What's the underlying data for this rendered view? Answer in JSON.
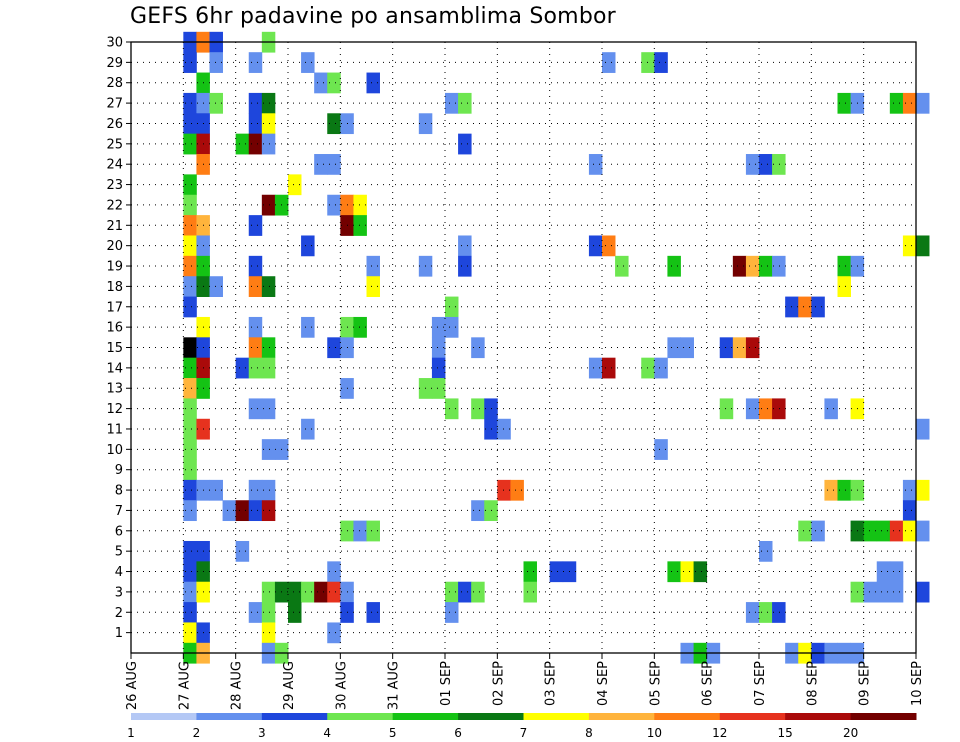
{
  "chart_data": {
    "type": "heatmap",
    "title": "GEFS 6hr padavine po ansamblima Sombor",
    "xlabel": "",
    "ylabel": "",
    "grid": true,
    "legend_placement": "bottom",
    "x_range_days": [
      "26 AUG 00",
      "10 SEP 00"
    ],
    "x_ticks": [
      "26 AUG",
      "27 AUG",
      "28 AUG",
      "29 AUG",
      "30 AUG",
      "31 AUG",
      "01 SEP",
      "02 SEP",
      "03 SEP",
      "04 SEP",
      "05 SEP",
      "06 SEP",
      "07 SEP",
      "08 SEP",
      "09 SEP",
      "10 SEP"
    ],
    "y_ticks": [
      1,
      2,
      3,
      4,
      5,
      6,
      7,
      8,
      9,
      10,
      11,
      12,
      13,
      14,
      15,
      16,
      17,
      18,
      19,
      20,
      21,
      22,
      23,
      24,
      25,
      26,
      27,
      28,
      29,
      30
    ],
    "y_range": [
      0,
      30
    ],
    "cell_hours": 6,
    "colorbar": {
      "labels": [
        "1",
        "2",
        "3",
        "4",
        "5",
        "6",
        "7",
        "8",
        "10",
        "12",
        "15",
        "20"
      ],
      "colors": [
        "#b4c8f5",
        "#6490ee",
        "#1e46dc",
        "#6ee650",
        "#14c314",
        "#0a7814",
        "#ffff00",
        "#ffb43c",
        "#ff7d14",
        "#e6321e",
        "#aa0a0a",
        "#730000"
      ]
    },
    "cells": [
      [
        "27 AUG 00",
        30,
        2
      ],
      [
        "27 AUG 06",
        30,
        8
      ],
      [
        "27 AUG 12",
        30,
        2
      ],
      [
        "28 AUG 12",
        30,
        3
      ],
      [
        "27 AUG 00",
        29,
        2
      ],
      [
        "27 AUG 12",
        29,
        1
      ],
      [
        "28 AUG 06",
        29,
        1
      ],
      [
        "29 AUG 06",
        29,
        1
      ],
      [
        "04 SEP 00",
        29,
        1
      ],
      [
        "04 SEP 18",
        29,
        3
      ],
      [
        "05 SEP 00",
        29,
        2
      ],
      [
        "27 AUG 06",
        28,
        4
      ],
      [
        "29 AUG 12",
        28,
        1
      ],
      [
        "29 AUG 18",
        28,
        3
      ],
      [
        "30 AUG 12",
        28,
        2
      ],
      [
        "27 AUG 00",
        27,
        2
      ],
      [
        "27 AUG 06",
        27,
        1
      ],
      [
        "27 AUG 12",
        27,
        3
      ],
      [
        "28 AUG 06",
        27,
        2
      ],
      [
        "28 AUG 12",
        27,
        5
      ],
      [
        "01 SEP 00",
        27,
        1
      ],
      [
        "01 SEP 06",
        27,
        3
      ],
      [
        "08 SEP 12",
        27,
        4
      ],
      [
        "08 SEP 18",
        27,
        1
      ],
      [
        "09 SEP 12",
        27,
        4
      ],
      [
        "09 SEP 18",
        27,
        8
      ],
      [
        "10 SEP 00",
        27,
        1
      ],
      [
        "27 AUG 00",
        26,
        2
      ],
      [
        "27 AUG 06",
        26,
        2
      ],
      [
        "28 AUG 06",
        26,
        2
      ],
      [
        "28 AUG 12",
        26,
        6
      ],
      [
        "29 AUG 18",
        26,
        5
      ],
      [
        "30 AUG 00",
        26,
        1
      ],
      [
        "31 AUG 12",
        26,
        1
      ],
      [
        "27 AUG 00",
        25,
        4
      ],
      [
        "27 AUG 06",
        25,
        10
      ],
      [
        "28 AUG 00",
        25,
        4
      ],
      [
        "28 AUG 06",
        25,
        11
      ],
      [
        "28 AUG 12",
        25,
        1
      ],
      [
        "01 SEP 06",
        25,
        2
      ],
      [
        "27 AUG 06",
        24,
        8
      ],
      [
        "29 AUG 12",
        24,
        1
      ],
      [
        "29 AUG 18",
        24,
        1
      ],
      [
        "03 SEP 18",
        24,
        1
      ],
      [
        "06 SEP 18",
        24,
        1
      ],
      [
        "07 SEP 00",
        24,
        2
      ],
      [
        "07 SEP 06",
        24,
        3
      ],
      [
        "27 AUG 00",
        23,
        4
      ],
      [
        "29 AUG 00",
        23,
        6
      ],
      [
        "27 AUG 00",
        22,
        3
      ],
      [
        "28 AUG 12",
        22,
        11
      ],
      [
        "28 AUG 18",
        22,
        4
      ],
      [
        "29 AUG 18",
        22,
        1
      ],
      [
        "30 AUG 00",
        22,
        8
      ],
      [
        "30 AUG 06",
        22,
        6
      ],
      [
        "27 AUG 00",
        21,
        8
      ],
      [
        "27 AUG 06",
        21,
        7
      ],
      [
        "28 AUG 06",
        21,
        2
      ],
      [
        "30 AUG 00",
        21,
        11
      ],
      [
        "30 AUG 06",
        21,
        4
      ],
      [
        "27 AUG 00",
        20,
        6
      ],
      [
        "27 AUG 06",
        20,
        1
      ],
      [
        "29 AUG 06",
        20,
        2
      ],
      [
        "01 SEP 06",
        20,
        1
      ],
      [
        "03 SEP 18",
        20,
        2
      ],
      [
        "04 SEP 00",
        20,
        8
      ],
      [
        "09 SEP 18",
        20,
        6
      ],
      [
        "10 SEP 00",
        20,
        5
      ],
      [
        "27 AUG 00",
        19,
        8
      ],
      [
        "27 AUG 06",
        19,
        4
      ],
      [
        "28 AUG 06",
        19,
        2
      ],
      [
        "30 AUG 12",
        19,
        1
      ],
      [
        "31 AUG 12",
        19,
        1
      ],
      [
        "01 SEP 06",
        19,
        2
      ],
      [
        "04 SEP 06",
        19,
        3
      ],
      [
        "05 SEP 06",
        19,
        4
      ],
      [
        "06 SEP 12",
        19,
        11
      ],
      [
        "06 SEP 18",
        19,
        7
      ],
      [
        "07 SEP 00",
        19,
        4
      ],
      [
        "07 SEP 06",
        19,
        1
      ],
      [
        "08 SEP 12",
        19,
        4
      ],
      [
        "08 SEP 18",
        19,
        1
      ],
      [
        "27 AUG 00",
        18,
        1
      ],
      [
        "27 AUG 06",
        18,
        5
      ],
      [
        "27 AUG 12",
        18,
        1
      ],
      [
        "28 AUG 06",
        18,
        8
      ],
      [
        "28 AUG 12",
        18,
        5
      ],
      [
        "30 AUG 12",
        18,
        6
      ],
      [
        "08 SEP 12",
        18,
        6
      ],
      [
        "27 AUG 00",
        17,
        2
      ],
      [
        "01 SEP 00",
        17,
        3
      ],
      [
        "07 SEP 12",
        17,
        2
      ],
      [
        "07 SEP 18",
        17,
        8
      ],
      [
        "08 SEP 00",
        17,
        2
      ],
      [
        "27 AUG 06",
        16,
        6
      ],
      [
        "28 AUG 06",
        16,
        1
      ],
      [
        "29 AUG 06",
        16,
        1
      ],
      [
        "30 AUG 00",
        16,
        3
      ],
      [
        "30 AUG 06",
        16,
        4
      ],
      [
        "31 AUG 18",
        16,
        1
      ],
      [
        "01 SEP 00",
        16,
        1
      ],
      [
        "27 AUG 00",
        15,
        12
      ],
      [
        "27 AUG 06",
        15,
        2
      ],
      [
        "28 AUG 06",
        15,
        8
      ],
      [
        "28 AUG 12",
        15,
        4
      ],
      [
        "29 AUG 18",
        15,
        2
      ],
      [
        "30 AUG 00",
        15,
        1
      ],
      [
        "31 AUG 18",
        15,
        1
      ],
      [
        "01 SEP 12",
        15,
        1
      ],
      [
        "05 SEP 06",
        15,
        1
      ],
      [
        "05 SEP 12",
        15,
        1
      ],
      [
        "06 SEP 06",
        15,
        2
      ],
      [
        "06 SEP 12",
        15,
        7
      ],
      [
        "06 SEP 18",
        15,
        10
      ],
      [
        "27 AUG 00",
        14,
        4
      ],
      [
        "27 AUG 06",
        14,
        10
      ],
      [
        "28 AUG 00",
        14,
        2
      ],
      [
        "28 AUG 06",
        14,
        3
      ],
      [
        "28 AUG 12",
        14,
        3
      ],
      [
        "31 AUG 18",
        14,
        2
      ],
      [
        "03 SEP 18",
        14,
        1
      ],
      [
        "04 SEP 00",
        14,
        10
      ],
      [
        "04 SEP 18",
        14,
        3
      ],
      [
        "05 SEP 00",
        14,
        1
      ],
      [
        "27 AUG 00",
        13,
        7
      ],
      [
        "27 AUG 06",
        13,
        4
      ],
      [
        "30 AUG 00",
        13,
        1
      ],
      [
        "31 AUG 12",
        13,
        3
      ],
      [
        "31 AUG 18",
        13,
        3
      ],
      [
        "27 AUG 00",
        12,
        3
      ],
      [
        "28 AUG 06",
        12,
        1
      ],
      [
        "28 AUG 12",
        12,
        1
      ],
      [
        "01 SEP 00",
        12,
        3
      ],
      [
        "01 SEP 12",
        12,
        3
      ],
      [
        "01 SEP 18",
        12,
        2
      ],
      [
        "06 SEP 06",
        12,
        3
      ],
      [
        "06 SEP 18",
        12,
        1
      ],
      [
        "07 SEP 00",
        12,
        8
      ],
      [
        "07 SEP 06",
        12,
        10
      ],
      [
        "08 SEP 06",
        12,
        1
      ],
      [
        "08 SEP 18",
        12,
        6
      ],
      [
        "27 AUG 00",
        11,
        3
      ],
      [
        "27 AUG 06",
        11,
        9
      ],
      [
        "29 AUG 06",
        11,
        1
      ],
      [
        "01 SEP 18",
        11,
        2
      ],
      [
        "02 SEP 00",
        11,
        1
      ],
      [
        "10 SEP 00",
        11,
        1
      ],
      [
        "27 AUG 00",
        10,
        3
      ],
      [
        "28 AUG 12",
        10,
        1
      ],
      [
        "28 AUG 18",
        10,
        1
      ],
      [
        "05 SEP 00",
        10,
        1
      ],
      [
        "27 AUG 00",
        9,
        3
      ],
      [
        "27 AUG 00",
        8,
        2
      ],
      [
        "27 AUG 06",
        8,
        1
      ],
      [
        "27 AUG 12",
        8,
        1
      ],
      [
        "28 AUG 06",
        8,
        1
      ],
      [
        "28 AUG 12",
        8,
        1
      ],
      [
        "02 SEP 00",
        8,
        9
      ],
      [
        "02 SEP 06",
        8,
        8
      ],
      [
        "08 SEP 06",
        8,
        7
      ],
      [
        "08 SEP 12",
        8,
        4
      ],
      [
        "08 SEP 18",
        8,
        3
      ],
      [
        "09 SEP 18",
        8,
        1
      ],
      [
        "10 SEP 00",
        8,
        6
      ],
      [
        "27 AUG 00",
        7,
        1
      ],
      [
        "27 AUG 18",
        7,
        1
      ],
      [
        "28 AUG 00",
        7,
        11
      ],
      [
        "28 AUG 06",
        7,
        2
      ],
      [
        "28 AUG 12",
        7,
        10
      ],
      [
        "01 SEP 12",
        7,
        1
      ],
      [
        "01 SEP 18",
        7,
        3
      ],
      [
        "09 SEP 18",
        7,
        2
      ],
      [
        "30 AUG 00",
        6,
        3
      ],
      [
        "30 AUG 06",
        6,
        1
      ],
      [
        "30 AUG 12",
        6,
        3
      ],
      [
        "07 SEP 18",
        6,
        3
      ],
      [
        "08 SEP 00",
        6,
        1
      ],
      [
        "08 SEP 18",
        6,
        5
      ],
      [
        "09 SEP 00",
        6,
        4
      ],
      [
        "09 SEP 06",
        6,
        4
      ],
      [
        "09 SEP 12",
        6,
        9
      ],
      [
        "09 SEP 18",
        6,
        6
      ],
      [
        "10 SEP 00",
        6,
        1
      ],
      [
        "27 AUG 00",
        5,
        2
      ],
      [
        "27 AUG 06",
        5,
        2
      ],
      [
        "28 AUG 00",
        5,
        1
      ],
      [
        "07 SEP 00",
        5,
        1
      ],
      [
        "27 AUG 00",
        4,
        2
      ],
      [
        "27 AUG 06",
        4,
        5
      ],
      [
        "29 AUG 18",
        4,
        1
      ],
      [
        "02 SEP 12",
        4,
        4
      ],
      [
        "03 SEP 00",
        4,
        2
      ],
      [
        "03 SEP 06",
        4,
        2
      ],
      [
        "05 SEP 06",
        4,
        4
      ],
      [
        "05 SEP 12",
        4,
        6
      ],
      [
        "05 SEP 18",
        4,
        5
      ],
      [
        "09 SEP 06",
        4,
        1
      ],
      [
        "09 SEP 12",
        4,
        1
      ],
      [
        "27 AUG 00",
        3,
        1
      ],
      [
        "27 AUG 06",
        3,
        6
      ],
      [
        "28 AUG 12",
        3,
        3
      ],
      [
        "28 AUG 18",
        3,
        5
      ],
      [
        "29 AUG 00",
        3,
        5
      ],
      [
        "29 AUG 06",
        3,
        3
      ],
      [
        "29 AUG 12",
        3,
        11
      ],
      [
        "29 AUG 18",
        3,
        9
      ],
      [
        "30 AUG 00",
        3,
        1
      ],
      [
        "01 SEP 00",
        3,
        3
      ],
      [
        "01 SEP 06",
        3,
        2
      ],
      [
        "01 SEP 12",
        3,
        3
      ],
      [
        "02 SEP 12",
        3,
        3
      ],
      [
        "08 SEP 18",
        3,
        3
      ],
      [
        "09 SEP 00",
        3,
        1
      ],
      [
        "09 SEP 06",
        3,
        1
      ],
      [
        "09 SEP 12",
        3,
        1
      ],
      [
        "10 SEP 00",
        3,
        2
      ],
      [
        "27 AUG 00",
        2,
        2
      ],
      [
        "28 AUG 06",
        2,
        1
      ],
      [
        "28 AUG 12",
        2,
        3
      ],
      [
        "29 AUG 00",
        2,
        5
      ],
      [
        "30 AUG 00",
        2,
        2
      ],
      [
        "30 AUG 12",
        2,
        2
      ],
      [
        "01 SEP 00",
        2,
        1
      ],
      [
        "06 SEP 18",
        2,
        1
      ],
      [
        "07 SEP 00",
        2,
        3
      ],
      [
        "07 SEP 06",
        2,
        2
      ],
      [
        "27 AUG 00",
        1,
        6
      ],
      [
        "27 AUG 06",
        1,
        2
      ],
      [
        "28 AUG 12",
        1,
        6
      ],
      [
        "29 AUG 18",
        1,
        1
      ],
      [
        "27 AUG 00",
        0,
        4
      ],
      [
        "27 AUG 06",
        0,
        7
      ],
      [
        "28 AUG 12",
        0,
        1
      ],
      [
        "28 AUG 18",
        0,
        3
      ],
      [
        "05 SEP 12",
        0,
        1
      ],
      [
        "05 SEP 18",
        0,
        4
      ],
      [
        "06 SEP 00",
        0,
        1
      ],
      [
        "07 SEP 12",
        0,
        1
      ],
      [
        "07 SEP 18",
        0,
        6
      ],
      [
        "08 SEP 00",
        0,
        2
      ],
      [
        "08 SEP 06",
        0,
        1
      ],
      [
        "08 SEP 12",
        0,
        1
      ],
      [
        "08 SEP 18",
        0,
        1
      ]
    ]
  }
}
